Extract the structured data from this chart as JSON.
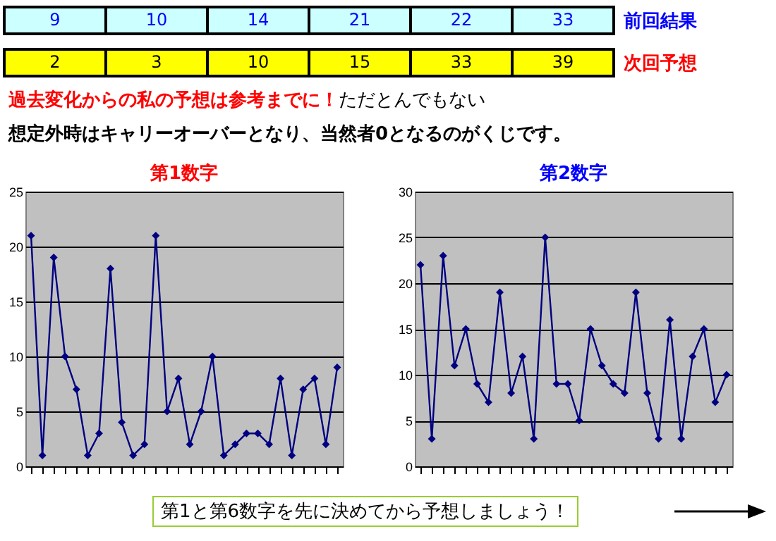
{
  "chart_data": [
    {
      "type": "other",
      "annotations": [
        "9",
        "10",
        "14",
        "21",
        "22",
        "33",
        "前回結果",
        "2",
        "3",
        "10",
        "15",
        "33",
        "39",
        "次回予想",
        "過去変化からの私の予想は参考までに！",
        "ただとんでもない",
        "想定外時はキャリーオーバーとなり、当然者0となるのがくじです。"
      ]
    },
    {
      "type": "line",
      "title": "第1数字",
      "categories": [
        null,
        null,
        null,
        null,
        null,
        null,
        null,
        null,
        null,
        null,
        null,
        null,
        null,
        null,
        null,
        null,
        null,
        null,
        null,
        null,
        null,
        null,
        null,
        null,
        null,
        null,
        null,
        null
      ],
      "series": [
        {
          "color": "#000080",
          "values": [
            21,
            1,
            19,
            10,
            7,
            1,
            3,
            18,
            4,
            1,
            2,
            21,
            5,
            8,
            2,
            5,
            10,
            1,
            2,
            3,
            3,
            2,
            8,
            1,
            7,
            8,
            2,
            9
          ]
        }
      ],
      "ylim": [
        0,
        25
      ],
      "yticks": [
        0,
        5,
        10,
        15,
        20,
        25
      ],
      "grid": "y",
      "marker": "diamond",
      "tick_labels": "y"
    },
    {
      "type": "line",
      "title": "第2数字",
      "categories": [
        null,
        null,
        null,
        null,
        null,
        null,
        null,
        null,
        null,
        null,
        null,
        null,
        null,
        null,
        null,
        null,
        null,
        null,
        null,
        null,
        null,
        null,
        null,
        null,
        null,
        null,
        null,
        null
      ],
      "series": [
        {
          "color": "#000080",
          "values": [
            22,
            3,
            23,
            11,
            15,
            9,
            7,
            19,
            8,
            12,
            3,
            25,
            9,
            9,
            5,
            15,
            11,
            9,
            8,
            19,
            8,
            3,
            16,
            3,
            12,
            15,
            7,
            10
          ]
        }
      ],
      "ylim": [
        0,
        30
      ],
      "yticks": [
        0,
        5,
        10,
        15,
        20,
        25,
        30
      ],
      "grid": "y",
      "marker": "diamond",
      "tick_labels": "y",
      "annotations": [
        "第1と第6数字を先に決めてから予想しましょう！"
      ]
    }
  ]
}
